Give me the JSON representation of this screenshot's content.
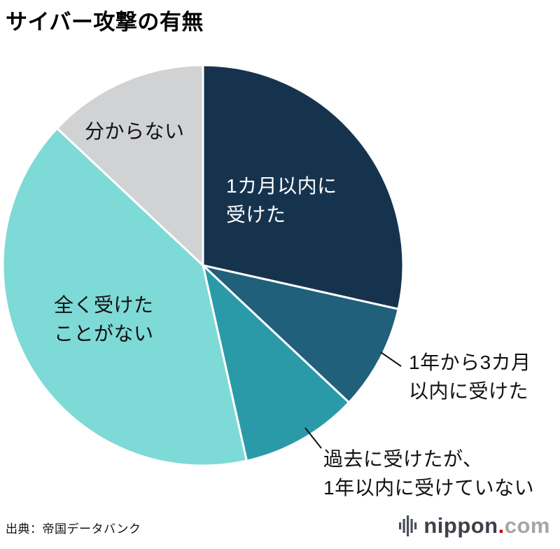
{
  "page": {
    "title": "サイバー攻撃の有無",
    "source": "出典：帝国データバンク"
  },
  "logo": {
    "name": "nippon",
    "dot": ".",
    "tld": "com",
    "mark": "equalizer-bars-icon"
  },
  "chart_data": {
    "type": "pie",
    "title": "サイバー攻撃の有無",
    "source": "帝国データバンク",
    "start_angle_deg": -90,
    "direction": "clockwise",
    "values_shown_on_chart": false,
    "unit": "% (estimated from slice angles)",
    "slices": [
      {
        "label": "1カ月以内に\n受けた",
        "full_label": "1カ月以内に受けた",
        "value": 28.5,
        "color": "#16334e",
        "label_position": "inside",
        "text_color": "#ffffff"
      },
      {
        "label": "1年から3カ月\n以内に受けた",
        "full_label": "1年から3カ月以内に受けた",
        "value": 8.5,
        "color": "#20607b",
        "label_position": "outside-right",
        "text_color": "#111111"
      },
      {
        "label": "過去に受けたが、\n1年以内に受けていない",
        "full_label": "過去に受けたが、1年以内に受けていない",
        "value": 9.5,
        "color": "#2b9aa8",
        "label_position": "outside-bottom",
        "text_color": "#111111"
      },
      {
        "label": "全く受けた\nことがない",
        "full_label": "全く受けたことがない",
        "value": 40.5,
        "color": "#7edad6",
        "label_position": "inside",
        "text_color": "#111111"
      },
      {
        "label": "分からない",
        "full_label": "分からない",
        "value": 13.0,
        "color": "#d1d2d4",
        "label_position": "inside",
        "text_color": "#111111"
      }
    ]
  }
}
